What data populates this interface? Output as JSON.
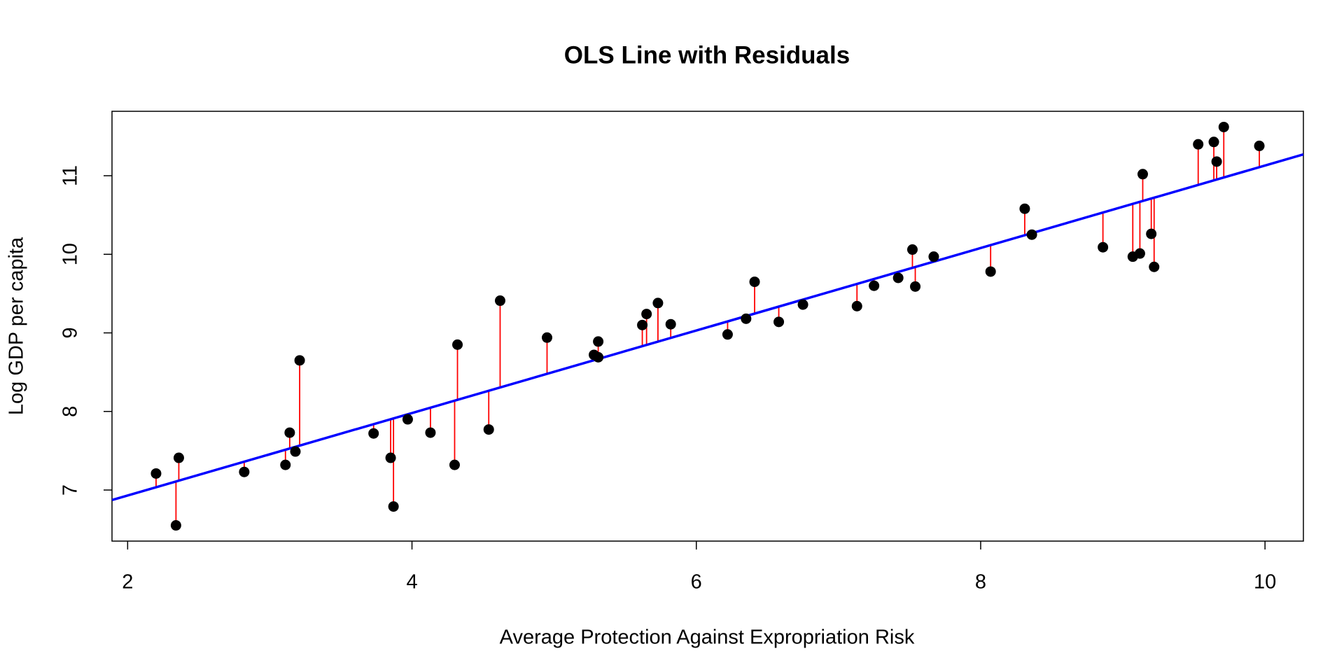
{
  "chart_data": {
    "type": "scatter",
    "title": "OLS Line with Residuals",
    "x_label": "Average Protection Against Expropriation Risk",
    "y_label": "Log GDP per capita",
    "x": [
      2.2,
      2.34,
      2.36,
      2.82,
      3.11,
      3.14,
      3.18,
      3.21,
      3.73,
      3.85,
      3.87,
      3.97,
      4.13,
      4.3,
      4.32,
      4.54,
      4.62,
      4.95,
      5.28,
      5.31,
      5.31,
      5.62,
      5.65,
      5.73,
      5.82,
      6.22,
      6.35,
      6.41,
      6.58,
      6.75,
      7.13,
      7.25,
      7.42,
      7.52,
      7.54,
      7.67,
      8.07,
      8.31,
      8.36,
      8.86,
      9.07,
      9.12,
      9.14,
      9.2,
      9.22,
      9.53,
      9.64,
      9.66,
      9.71,
      9.96
    ],
    "values": [
      7.21,
      6.55,
      7.41,
      7.23,
      7.32,
      7.73,
      7.49,
      8.65,
      7.72,
      7.41,
      6.79,
      7.9,
      7.73,
      7.32,
      8.85,
      7.77,
      9.41,
      8.94,
      8.72,
      8.69,
      8.89,
      9.1,
      9.24,
      9.38,
      9.11,
      8.98,
      9.18,
      9.65,
      9.14,
      9.36,
      9.34,
      9.6,
      9.7,
      10.06,
      9.59,
      9.97,
      9.78,
      10.58,
      10.25,
      10.09,
      9.97,
      10.01,
      11.02,
      10.26,
      9.84,
      11.4,
      11.43,
      11.18,
      11.62,
      11.38
    ],
    "color": "#000000",
    "residual_color": "#ff0000",
    "line": {
      "intercept": 5.88,
      "slope": 0.525,
      "color": "#0000ff"
    },
    "xlim": [
      1.89,
      10.27
    ],
    "ylim": [
      6.35,
      11.82
    ],
    "xticks": [
      2,
      4,
      6,
      8,
      10
    ],
    "yticks": [
      7,
      8,
      9,
      10,
      11
    ]
  }
}
